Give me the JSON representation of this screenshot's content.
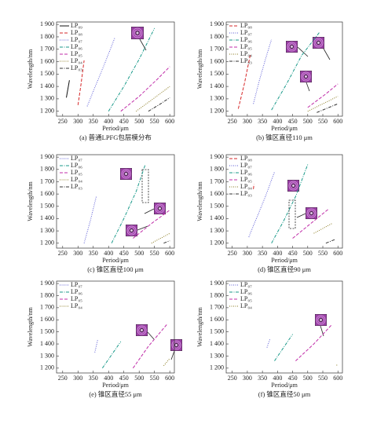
{
  "chart_data": [
    {
      "type": "line",
      "caption": "(a) 普通LPFG包层模分布",
      "x_label": "Period/μm",
      "y_label": "Wavelength/nm",
      "xlim": [
        230,
        615
      ],
      "ylim": [
        1160,
        1920
      ],
      "xticks": [
        250,
        300,
        350,
        400,
        450,
        500,
        550,
        600
      ],
      "yticks": [
        {
          "value": 1200,
          "label": "1 200"
        },
        {
          "value": 1300,
          "label": "1 300"
        },
        {
          "value": 1400,
          "label": "1 400"
        },
        {
          "value": 1500,
          "label": "1 500"
        },
        {
          "value": 1600,
          "label": "1 600"
        },
        {
          "value": 1700,
          "label": "1 700"
        },
        {
          "value": 1800,
          "label": "1 800"
        },
        {
          "value": 1900,
          "label": "1 900"
        }
      ],
      "series": [
        {
          "name": "LP₀₉",
          "color": "#111111",
          "dash": "solid",
          "x": [
            262,
            272
          ],
          "values": [
            1310,
            1450
          ]
        },
        {
          "name": "LP₀₈",
          "color": "#d62728",
          "dash": "dashed",
          "x": [
            300,
            310,
            320
          ],
          "values": [
            1250,
            1420,
            1610
          ]
        },
        {
          "name": "LP₀₇",
          "color": "#5b5bd6",
          "dash": "dotted",
          "x": [
            330,
            360,
            390,
            420
          ],
          "values": [
            1240,
            1420,
            1600,
            1790
          ]
        },
        {
          "name": "LP₀₆",
          "color": "#1a9a8a",
          "dash": "dashdot",
          "x": [
            400,
            450,
            500,
            550
          ],
          "values": [
            1200,
            1400,
            1620,
            1870
          ]
        },
        {
          "name": "LP₀₅",
          "color": "#c02ca8",
          "dash": "dashed",
          "x": [
            440,
            500,
            560,
            600
          ],
          "values": [
            1200,
            1320,
            1460,
            1560
          ]
        },
        {
          "name": "LP₀₄",
          "color": "#8a7a20",
          "dash": "dotted",
          "x": [
            490,
            540,
            600
          ],
          "values": [
            1200,
            1290,
            1400
          ]
        },
        {
          "name": "LP₀₃",
          "color": "#333333",
          "dash": "dashdot",
          "x": [
            530,
            570,
            600
          ],
          "values": [
            1200,
            1260,
            1310
          ]
        }
      ]
    },
    {
      "type": "line",
      "caption": "(b) 锥区直径110 μm",
      "x_label": "Period/μm",
      "y_label": "Wavelength/nm",
      "xlim": [
        230,
        615
      ],
      "ylim": [
        1160,
        1920
      ],
      "xticks": [
        250,
        300,
        350,
        400,
        450,
        500,
        550,
        600
      ],
      "yticks": [
        {
          "value": 1200,
          "label": "1 200"
        },
        {
          "value": 1300,
          "label": "1 300"
        },
        {
          "value": 1400,
          "label": "1 400"
        },
        {
          "value": 1500,
          "label": "1 500"
        },
        {
          "value": 1600,
          "label": "1 600"
        },
        {
          "value": 1700,
          "label": "1 700"
        },
        {
          "value": 1800,
          "label": "1 800"
        },
        {
          "value": 1900,
          "label": "1 900"
        }
      ],
      "series": [
        {
          "name": "LP₀₈",
          "color": "#d62728",
          "dash": "dashed",
          "x": [
            270,
            290,
            310
          ],
          "values": [
            1220,
            1420,
            1660
          ]
        },
        {
          "name": "LP₀₇",
          "color": "#5b5bd6",
          "dash": "dotted",
          "x": [
            320,
            340,
            360,
            380
          ],
          "values": [
            1260,
            1450,
            1620,
            1780
          ]
        },
        {
          "name": "LP₀₆",
          "color": "#1a9a8a",
          "dash": "dashdot",
          "x": [
            380,
            430,
            480,
            540
          ],
          "values": [
            1210,
            1420,
            1650,
            1840
          ]
        },
        {
          "name": "LP₀₅",
          "color": "#c02ca8",
          "dash": "dashed",
          "x": [
            500,
            560,
            600
          ],
          "values": [
            1230,
            1340,
            1420
          ]
        },
        {
          "name": "LP₀₄",
          "color": "#8a7a20",
          "dash": "dotted",
          "x": [
            500,
            550,
            600
          ],
          "values": [
            1200,
            1260,
            1320
          ]
        },
        {
          "name": "LP₀₃",
          "color": "#333333",
          "dash": "dashdot",
          "x": [
            530,
            570,
            600
          ],
          "values": [
            1190,
            1230,
            1260
          ]
        }
      ]
    },
    {
      "type": "line",
      "caption": "(c) 锥区直径100 μm",
      "x_label": "Period/μm",
      "y_label": "Wavelength/nm",
      "xlim": [
        230,
        615
      ],
      "ylim": [
        1160,
        1920
      ],
      "xticks": [
        250,
        300,
        350,
        400,
        450,
        500,
        550,
        600
      ],
      "yticks": [
        {
          "value": 1200,
          "label": "1 200"
        },
        {
          "value": 1300,
          "label": "1 300"
        },
        {
          "value": 1400,
          "label": "1 400"
        },
        {
          "value": 1500,
          "label": "1 500"
        },
        {
          "value": 1600,
          "label": "1 600"
        },
        {
          "value": 1700,
          "label": "1 700"
        },
        {
          "value": 1800,
          "label": "1 800"
        },
        {
          "value": 1900,
          "label": "1 900"
        }
      ],
      "series": [
        {
          "name": "LP₀₇",
          "color": "#5b5bd6",
          "dash": "dotted",
          "x": [
            320,
            340,
            360
          ],
          "values": [
            1200,
            1380,
            1580
          ]
        },
        {
          "name": "LP₀₆",
          "color": "#1a9a8a",
          "dash": "dashdot",
          "x": [
            410,
            450,
            490,
            520
          ],
          "values": [
            1200,
            1400,
            1620,
            1840
          ]
        },
        {
          "name": "LP₀₅",
          "color": "#c02ca8",
          "dash": "dashed",
          "x": [
            480,
            540,
            600
          ],
          "values": [
            1240,
            1360,
            1470
          ]
        },
        {
          "name": "LP₀₄",
          "color": "#8a7a20",
          "dash": "dotted",
          "x": [
            540,
            600
          ],
          "values": [
            1200,
            1280
          ]
        },
        {
          "name": "LP₀₃",
          "color": "#333333",
          "dash": "dashdot",
          "x": [
            580,
            600
          ],
          "values": [
            1200,
            1220
          ]
        }
      ]
    },
    {
      "type": "line",
      "caption": "(d) 锥区直径90 μm",
      "x_label": "Period/μm",
      "y_label": "Wavelength/nm",
      "xlim": [
        230,
        615
      ],
      "ylim": [
        1160,
        1920
      ],
      "xticks": [
        250,
        300,
        350,
        400,
        450,
        500,
        550,
        600
      ],
      "yticks": [
        {
          "value": 1200,
          "label": "1 200"
        },
        {
          "value": 1300,
          "label": "1 300"
        },
        {
          "value": 1400,
          "label": "1 400"
        },
        {
          "value": 1500,
          "label": "1 500"
        },
        {
          "value": 1600,
          "label": "1 600"
        },
        {
          "value": 1700,
          "label": "1 700"
        },
        {
          "value": 1800,
          "label": "1 800"
        },
        {
          "value": 1900,
          "label": "1 900"
        }
      ],
      "series": [
        {
          "name": "LP₀₈",
          "color": "#d62728",
          "dash": "dashed",
          "x": [
            320,
            322
          ],
          "values": [
            1640,
            1680
          ]
        },
        {
          "name": "LP₀₇",
          "color": "#5b5bd6",
          "dash": "dotted",
          "x": [
            305,
            330,
            360,
            390
          ],
          "values": [
            1250,
            1400,
            1580,
            1780
          ]
        },
        {
          "name": "LP₀₆",
          "color": "#1a9a8a",
          "dash": "dashdot",
          "x": [
            380,
            420,
            460,
            500
          ],
          "values": [
            1200,
            1380,
            1580,
            1840
          ]
        },
        {
          "name": "LP₀₅",
          "color": "#c02ca8",
          "dash": "dashed",
          "x": [
            450,
            510,
            570
          ],
          "values": [
            1240,
            1360,
            1480
          ]
        },
        {
          "name": "LP₀₄",
          "color": "#8a7a20",
          "dash": "dotted",
          "x": [
            520,
            580
          ],
          "values": [
            1280,
            1360
          ]
        },
        {
          "name": "LP₀₃",
          "color": "#333333",
          "dash": "dashdot",
          "x": [
            560,
            590
          ],
          "values": [
            1200,
            1230
          ]
        }
      ]
    },
    {
      "type": "line",
      "caption": "(e) 锥区直径55 μm",
      "x_label": "Period/μm",
      "y_label": "Wavelength/nm",
      "xlim": [
        230,
        615
      ],
      "ylim": [
        1160,
        1920
      ],
      "xticks": [
        250,
        300,
        350,
        400,
        450,
        500,
        550,
        600
      ],
      "yticks": [
        {
          "value": 1200,
          "label": "1 200"
        },
        {
          "value": 1300,
          "label": "1 300"
        },
        {
          "value": 1400,
          "label": "1 400"
        },
        {
          "value": 1500,
          "label": "1 500"
        },
        {
          "value": 1600,
          "label": "1 600"
        },
        {
          "value": 1700,
          "label": "1 700"
        },
        {
          "value": 1800,
          "label": "1 800"
        },
        {
          "value": 1900,
          "label": "1 900"
        }
      ],
      "series": [
        {
          "name": "LP₀₇",
          "color": "#5b5bd6",
          "dash": "dotted",
          "x": [
            355,
            365
          ],
          "values": [
            1330,
            1440
          ]
        },
        {
          "name": "LP₀₆",
          "color": "#1a9a8a",
          "dash": "dashdot",
          "x": [
            380,
            410,
            440
          ],
          "values": [
            1200,
            1310,
            1420
          ]
        },
        {
          "name": "LP₀₅",
          "color": "#c02ca8",
          "dash": "dashed",
          "x": [
            480,
            530,
            590
          ],
          "values": [
            1200,
            1380,
            1560
          ]
        },
        {
          "name": "LP₀₄",
          "color": "#8a7a20",
          "dash": "dotted",
          "x": [
            580,
            600
          ],
          "values": [
            1220,
            1280
          ]
        }
      ]
    },
    {
      "type": "line",
      "caption": "(f) 锥区直径50 μm",
      "x_label": "Period/μm",
      "y_label": "Wavelength/nm",
      "xlim": [
        230,
        615
      ],
      "ylim": [
        1160,
        1920
      ],
      "xticks": [
        250,
        300,
        350,
        400,
        450,
        500,
        550,
        600
      ],
      "yticks": [
        {
          "value": 1200,
          "label": "1 200"
        },
        {
          "value": 1300,
          "label": "1 300"
        },
        {
          "value": 1400,
          "label": "1 400"
        },
        {
          "value": 1500,
          "label": "1 500"
        },
        {
          "value": 1600,
          "label": "1 600"
        },
        {
          "value": 1700,
          "label": "1 700"
        },
        {
          "value": 1800,
          "label": "1 800"
        },
        {
          "value": 1900,
          "label": "1 900"
        }
      ],
      "series": [
        {
          "name": "LP₀₇",
          "color": "#5b5bd6",
          "dash": "dotted",
          "x": [
            365,
            375
          ],
          "values": [
            1370,
            1440
          ]
        },
        {
          "name": "LP₀₆",
          "color": "#1a9a8a",
          "dash": "dashdot",
          "x": [
            390,
            420,
            450
          ],
          "values": [
            1260,
            1370,
            1480
          ]
        },
        {
          "name": "LP₀₅",
          "color": "#c02ca8",
          "dash": "dashed",
          "x": [
            460,
            520,
            580
          ],
          "values": [
            1260,
            1400,
            1560
          ]
        },
        {
          "name": "LP₀₄",
          "color": "#8a7a20",
          "dash": "dotted",
          "x": [
            595,
            600
          ],
          "values": [
            1225,
            1225
          ]
        }
      ]
    }
  ]
}
